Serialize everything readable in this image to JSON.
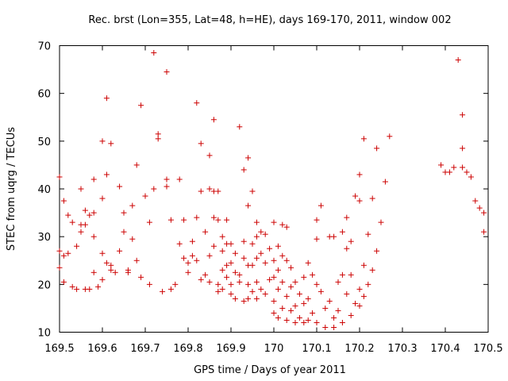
{
  "chart_data": {
    "type": "scatter",
    "title": "Rec. brst (Lon=355, Lat=48, h=HE), days 169-170, 2011, window 002",
    "xlabel": "GPS time / Days of year 2011",
    "ylabel": "STEC from uqrg / TECUs",
    "xlim": [
      169.5,
      170.5
    ],
    "ylim": [
      10,
      70
    ],
    "xticks": [
      "169.5",
      "169.6",
      "169.7",
      "169.8",
      "169.9",
      "170",
      "170.1",
      "170.2",
      "170.3",
      "170.4",
      "170.5"
    ],
    "yticks": [
      "10",
      "20",
      "30",
      "40",
      "50",
      "60",
      "70"
    ],
    "grid": false,
    "marker_color": "#cc0000",
    "marker": "plus",
    "series": [
      {
        "points": [
          [
            169.5,
            42.5
          ],
          [
            169.51,
            37.5
          ],
          [
            169.5,
            27
          ],
          [
            169.5,
            23.5
          ],
          [
            169.51,
            20.5
          ],
          [
            169.51,
            26
          ],
          [
            169.52,
            34.5
          ],
          [
            169.53,
            19.5
          ],
          [
            169.53,
            33
          ],
          [
            169.52,
            26.5
          ],
          [
            169.54,
            28
          ],
          [
            169.54,
            19
          ],
          [
            169.55,
            40
          ],
          [
            169.55,
            32.5
          ],
          [
            169.55,
            31
          ],
          [
            169.56,
            19
          ],
          [
            169.56,
            35.5
          ],
          [
            169.56,
            32.5
          ],
          [
            169.57,
            34.5
          ],
          [
            169.58,
            42
          ],
          [
            169.58,
            35
          ],
          [
            169.58,
            30
          ],
          [
            169.57,
            19
          ],
          [
            169.58,
            22.5
          ],
          [
            169.59,
            19.5
          ],
          [
            169.6,
            50
          ],
          [
            169.6,
            38
          ],
          [
            169.6,
            26.5
          ],
          [
            169.6,
            21
          ],
          [
            169.61,
            59
          ],
          [
            169.61,
            43
          ],
          [
            169.61,
            24.5
          ],
          [
            169.62,
            49.5
          ],
          [
            169.62,
            24
          ],
          [
            169.62,
            23
          ],
          [
            169.63,
            22.5
          ],
          [
            169.64,
            40.5
          ],
          [
            169.64,
            27
          ],
          [
            169.65,
            35
          ],
          [
            169.65,
            31
          ],
          [
            169.66,
            23
          ],
          [
            169.66,
            22.5
          ],
          [
            169.67,
            36.5
          ],
          [
            169.67,
            29.5
          ],
          [
            169.68,
            45
          ],
          [
            169.68,
            25
          ],
          [
            169.69,
            57.5
          ],
          [
            169.69,
            21.5
          ],
          [
            169.7,
            38.5
          ],
          [
            169.71,
            33
          ],
          [
            169.71,
            20
          ],
          [
            169.72,
            68.5
          ],
          [
            169.72,
            40
          ],
          [
            169.73,
            51.5
          ],
          [
            169.73,
            50.5
          ],
          [
            169.74,
            18.5
          ],
          [
            169.75,
            64.5
          ],
          [
            169.75,
            42
          ],
          [
            169.75,
            40.5
          ],
          [
            169.76,
            33.5
          ],
          [
            169.76,
            19
          ],
          [
            169.77,
            20
          ],
          [
            169.78,
            42
          ],
          [
            169.78,
            28.5
          ],
          [
            169.79,
            33.5
          ],
          [
            169.79,
            25.5
          ],
          [
            169.8,
            22.5
          ],
          [
            169.8,
            24.5
          ],
          [
            169.81,
            29
          ],
          [
            169.81,
            26
          ],
          [
            169.82,
            58
          ],
          [
            169.82,
            34
          ],
          [
            169.82,
            25
          ],
          [
            169.83,
            49.5
          ],
          [
            169.83,
            39.5
          ],
          [
            169.83,
            21
          ],
          [
            169.84,
            31
          ],
          [
            169.84,
            22
          ],
          [
            169.85,
            47
          ],
          [
            169.85,
            40
          ],
          [
            169.85,
            26
          ],
          [
            169.85,
            20.5
          ],
          [
            169.86,
            54.5
          ],
          [
            169.86,
            39.5
          ],
          [
            169.86,
            34
          ],
          [
            169.86,
            28
          ],
          [
            169.87,
            39.5
          ],
          [
            169.87,
            33.5
          ],
          [
            169.87,
            20
          ],
          [
            169.87,
            18.5
          ],
          [
            169.88,
            30
          ],
          [
            169.88,
            27
          ],
          [
            169.88,
            23
          ],
          [
            169.88,
            19
          ],
          [
            169.89,
            33.5
          ],
          [
            169.89,
            28.5
          ],
          [
            169.89,
            24
          ],
          [
            169.89,
            21.5
          ],
          [
            169.9,
            28.5
          ],
          [
            169.9,
            24.5
          ],
          [
            169.9,
            18
          ],
          [
            169.9,
            20
          ],
          [
            169.91,
            26.5
          ],
          [
            169.91,
            22.5
          ],
          [
            169.91,
            17
          ],
          [
            169.92,
            53
          ],
          [
            169.92,
            22
          ],
          [
            169.92,
            20.5
          ],
          [
            169.93,
            44
          ],
          [
            169.93,
            29
          ],
          [
            169.93,
            25.5
          ],
          [
            169.93,
            16.5
          ],
          [
            169.94,
            36.5
          ],
          [
            169.94,
            46.5
          ],
          [
            169.94,
            24
          ],
          [
            169.94,
            20
          ],
          [
            169.94,
            17
          ],
          [
            169.95,
            39.5
          ],
          [
            169.95,
            28.5
          ],
          [
            169.95,
            24
          ],
          [
            169.95,
            18.5
          ],
          [
            169.96,
            33
          ],
          [
            169.96,
            30
          ],
          [
            169.96,
            25.5
          ],
          [
            169.96,
            20.5
          ],
          [
            169.96,
            17
          ],
          [
            169.97,
            31
          ],
          [
            169.97,
            26.5
          ],
          [
            169.97,
            19
          ],
          [
            169.98,
            30.5
          ],
          [
            169.98,
            24.5
          ],
          [
            169.98,
            18
          ],
          [
            169.99,
            27.5
          ],
          [
            169.99,
            21
          ],
          [
            170,
            33
          ],
          [
            170,
            25
          ],
          [
            170,
            21.5
          ],
          [
            170,
            16.5
          ],
          [
            170,
            14
          ],
          [
            170.01,
            28
          ],
          [
            170.01,
            23
          ],
          [
            170.01,
            19
          ],
          [
            170.01,
            13
          ],
          [
            170.02,
            32.5
          ],
          [
            170.02,
            26
          ],
          [
            170.02,
            20.5
          ],
          [
            170.02,
            15
          ],
          [
            170.03,
            32
          ],
          [
            170.03,
            25
          ],
          [
            170.03,
            17.5
          ],
          [
            170.03,
            12.5
          ],
          [
            170.04,
            23.5
          ],
          [
            170.04,
            19.5
          ],
          [
            170.04,
            14.5
          ],
          [
            170.05,
            20.5
          ],
          [
            170.05,
            15.5
          ],
          [
            170.05,
            12
          ],
          [
            170.06,
            18
          ],
          [
            170.06,
            13
          ],
          [
            170.07,
            21.5
          ],
          [
            170.07,
            16
          ],
          [
            170.07,
            12
          ],
          [
            170.08,
            24.5
          ],
          [
            170.08,
            17
          ],
          [
            170.08,
            12.5
          ],
          [
            170.09,
            22
          ],
          [
            170.09,
            14
          ],
          [
            170.1,
            33.5
          ],
          [
            170.1,
            29.5
          ],
          [
            170.1,
            20
          ],
          [
            170.1,
            12
          ],
          [
            170.11,
            36.5
          ],
          [
            170.11,
            18.5
          ],
          [
            170.12,
            15
          ],
          [
            170.12,
            11
          ],
          [
            170.13,
            30
          ],
          [
            170.13,
            16.5
          ],
          [
            170.14,
            30
          ],
          [
            170.14,
            13
          ],
          [
            170.14,
            11
          ],
          [
            170.15,
            20.5
          ],
          [
            170.15,
            14.5
          ],
          [
            170.16,
            31
          ],
          [
            170.16,
            22
          ],
          [
            170.16,
            12
          ],
          [
            170.17,
            34
          ],
          [
            170.17,
            27.5
          ],
          [
            170.17,
            18
          ],
          [
            170.18,
            29
          ],
          [
            170.18,
            22
          ],
          [
            170.18,
            13.5
          ],
          [
            170.19,
            38.5
          ],
          [
            170.19,
            16
          ],
          [
            170.2,
            43
          ],
          [
            170.2,
            37.5
          ],
          [
            170.2,
            19
          ],
          [
            170.2,
            15.5
          ],
          [
            170.21,
            50.5
          ],
          [
            170.21,
            24
          ],
          [
            170.21,
            17.5
          ],
          [
            170.22,
            30.5
          ],
          [
            170.22,
            20
          ],
          [
            170.23,
            38
          ],
          [
            170.23,
            23
          ],
          [
            170.24,
            48.5
          ],
          [
            170.24,
            27
          ],
          [
            170.25,
            33
          ],
          [
            170.26,
            41.5
          ],
          [
            170.27,
            51
          ],
          [
            170.39,
            45
          ],
          [
            170.4,
            43.5
          ],
          [
            170.41,
            43.5
          ],
          [
            170.42,
            44.5
          ],
          [
            170.43,
            67
          ],
          [
            170.44,
            55.5
          ],
          [
            170.44,
            48.5
          ],
          [
            170.44,
            44.5
          ],
          [
            170.45,
            43.5
          ],
          [
            170.46,
            42.5
          ],
          [
            170.47,
            37.5
          ],
          [
            170.48,
            36
          ],
          [
            170.49,
            35
          ],
          [
            170.49,
            31
          ]
        ]
      }
    ]
  }
}
